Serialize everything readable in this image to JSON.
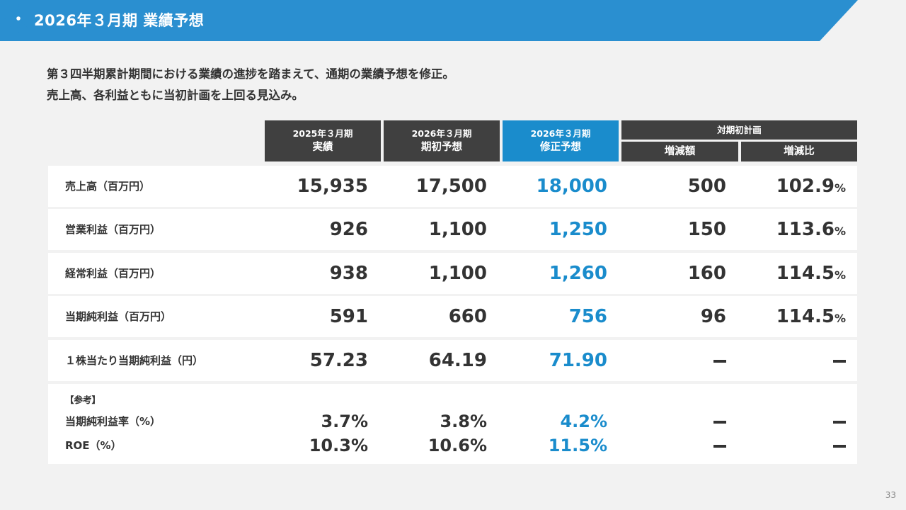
{
  "header": {
    "title": "2026年３月期 業績予想"
  },
  "lead": {
    "line1": "第３四半期累計期間における業績の進捗を踏まえて、通期の業績予想を修正。",
    "line2": "売上高、各利益ともに当初計画を上回る見込み。"
  },
  "columns": {
    "fy2025": {
      "line1": "2025年３月期",
      "line2": "実績"
    },
    "fy2026_initial": {
      "line1": "2026年３月期",
      "line2": "期初予想"
    },
    "fy2026_revised": {
      "line1": "2026年３月期",
      "line2": "修正予想"
    },
    "vs_plan_group": "対期初計画",
    "diff_amount": "増減額",
    "diff_ratio": "増減比"
  },
  "rows": [
    {
      "label": "売上高（百万円）",
      "fy2025": "15,935",
      "initial": "17,500",
      "revised": "18,000",
      "diff": "500",
      "ratio": "102.9",
      "ratio_unit": "%"
    },
    {
      "label": "営業利益（百万円）",
      "fy2025": "926",
      "initial": "1,100",
      "revised": "1,250",
      "diff": "150",
      "ratio": "113.6",
      "ratio_unit": "%"
    },
    {
      "label": "経常利益（百万円）",
      "fy2025": "938",
      "initial": "1,100",
      "revised": "1,260",
      "diff": "160",
      "ratio": "114.5",
      "ratio_unit": "%"
    },
    {
      "label": "当期純利益（百万円）",
      "fy2025": "591",
      "initial": "660",
      "revised": "756",
      "diff": "96",
      "ratio": "114.5",
      "ratio_unit": "%"
    },
    {
      "label": "１株当たり当期純利益（円）",
      "fy2025": "57.23",
      "initial": "64.19",
      "revised": "71.90"
    }
  ],
  "reference": {
    "tag": "【参考】",
    "items": [
      {
        "label": "当期純利益率（%）",
        "fy2025": "3.7%",
        "initial": "3.8%",
        "revised": "4.2%"
      },
      {
        "label": "ROE（%）",
        "fy2025": "10.3%",
        "initial": "10.6%",
        "revised": "11.5%"
      }
    ]
  },
  "page_number": "33",
  "colors": {
    "accent": "#1a8ccc",
    "header_dark": "#404040",
    "background": "#f2f2f2"
  }
}
